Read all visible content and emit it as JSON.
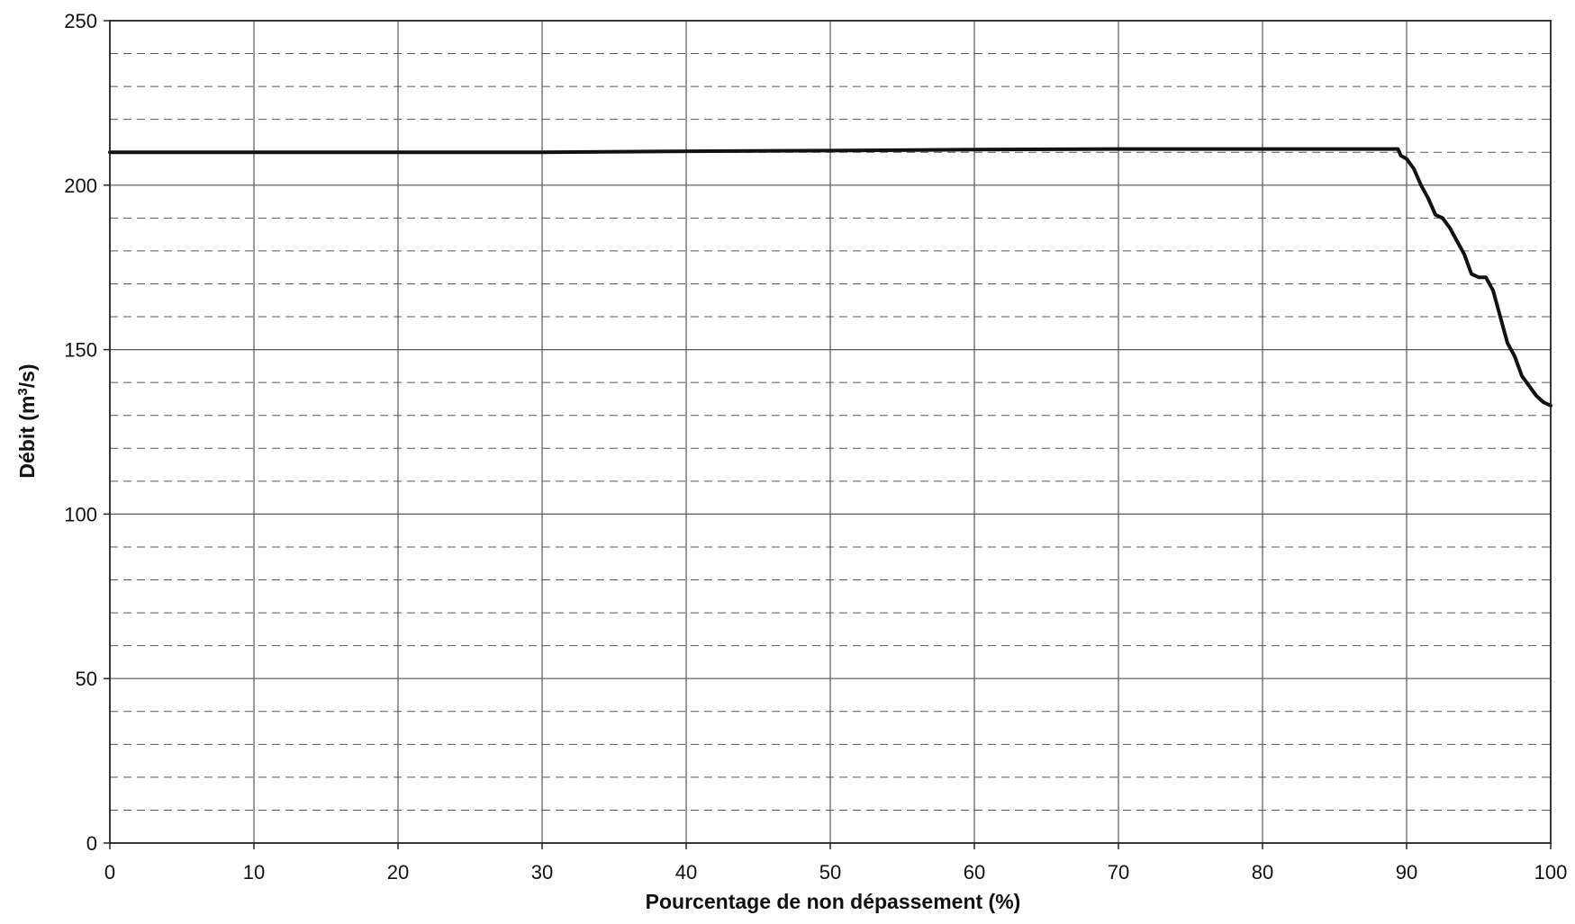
{
  "chart_data": {
    "type": "line",
    "title": "",
    "xlabel": "Pourcentage de non dépassement (%)",
    "ylabel_main": "Débit (m",
    "ylabel_sup": "3",
    "ylabel_end": "/s)",
    "xlim": [
      0,
      100
    ],
    "ylim": [
      0,
      250
    ],
    "x_ticks": [
      0,
      10,
      20,
      30,
      40,
      50,
      60,
      70,
      80,
      90,
      100
    ],
    "y_ticks": [
      0,
      50,
      100,
      150,
      200,
      250
    ],
    "x_tick_labels": [
      "0",
      "10",
      "20",
      "30",
      "40",
      "50",
      "60",
      "70",
      "80",
      "90",
      "100"
    ],
    "y_tick_labels": [
      "0",
      "50",
      "100",
      "150",
      "200",
      "250"
    ],
    "minor_y_step": 10,
    "grid": {
      "vertical_major": true,
      "horizontal_major": true,
      "horizontal_minor_dashed": true
    },
    "series": [
      {
        "x": [
          0,
          10,
          20,
          30,
          40,
          50,
          60,
          70,
          80,
          89.4,
          89.6,
          90.0,
          90.5,
          91.0,
          91.5,
          92.0,
          92.5,
          93.0,
          93.5,
          94.0,
          94.5,
          95.0,
          95.5,
          96.0,
          96.5,
          97.0,
          97.5,
          98.0,
          98.5,
          99.0,
          99.5,
          100
        ],
        "y": [
          210,
          210,
          210,
          210,
          210.3,
          210.5,
          210.8,
          211,
          211,
          211,
          209,
          208,
          205,
          200,
          196,
          191,
          190,
          187,
          183,
          179,
          173,
          172,
          172,
          168,
          160,
          152,
          148,
          142,
          139,
          136,
          134,
          133
        ]
      }
    ]
  },
  "colors": {
    "background": "#ffffff",
    "grid_major": "#555555",
    "grid_minor": "#555555",
    "line": "#111111",
    "text": "#111111"
  }
}
